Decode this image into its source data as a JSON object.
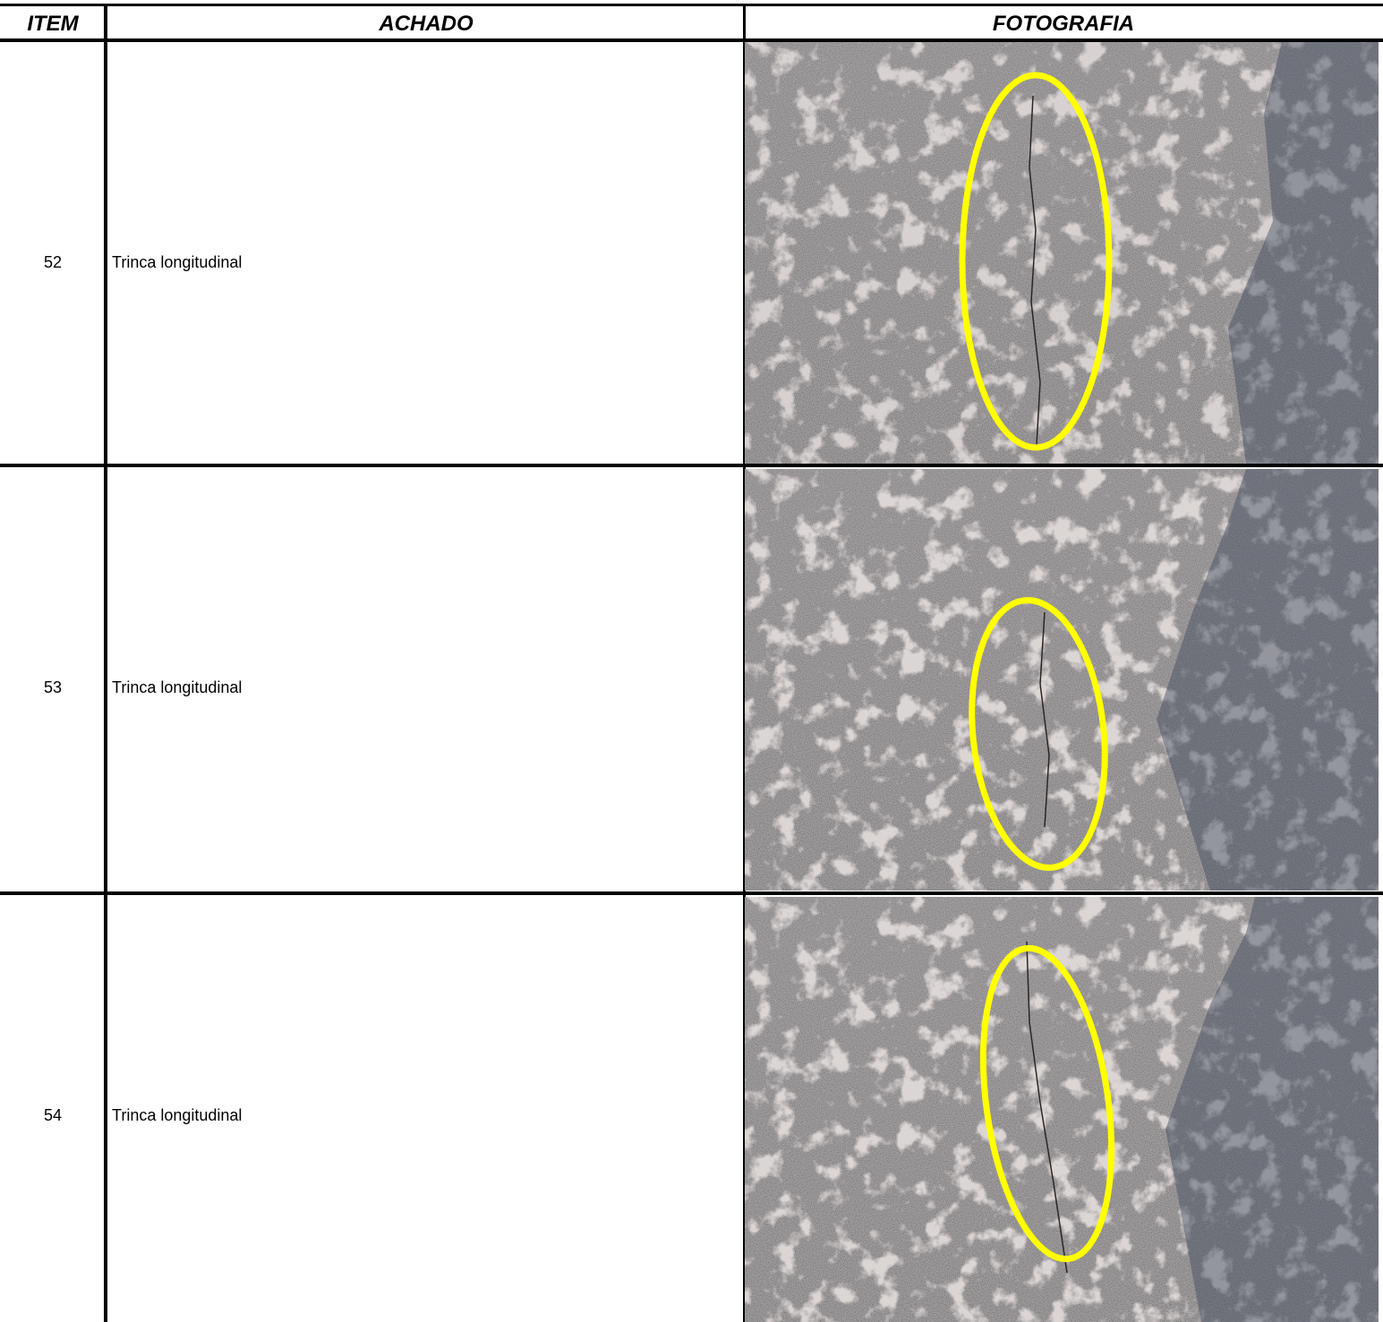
{
  "table": {
    "header": [
      "ITEM",
      "ACHADO",
      "FOTOGRAFIA"
    ],
    "rows": [
      [
        "52",
        "Trinca longitudinal"
      ],
      [
        "53",
        "Trinca longitudinal"
      ],
      [
        "54",
        "Trinca longitudinal"
      ]
    ]
  }
}
